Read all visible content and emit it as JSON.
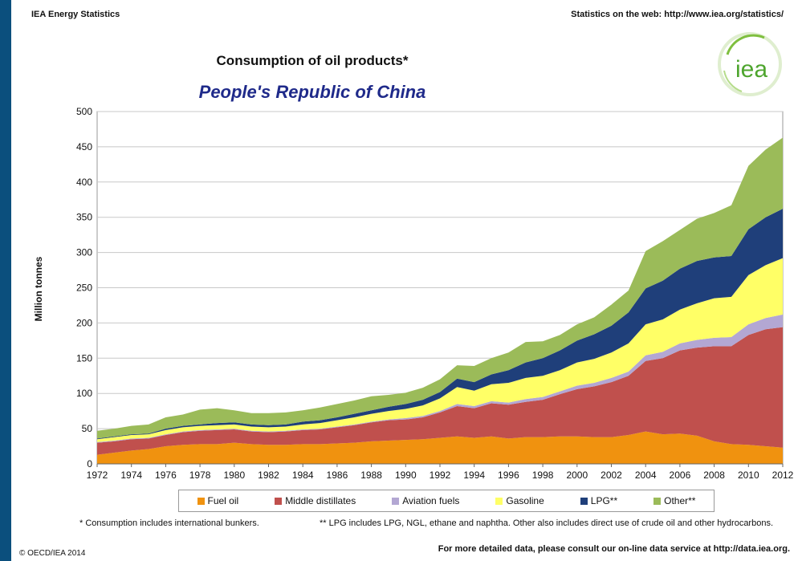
{
  "header": {
    "left": "IEA Energy Statistics",
    "right": "Statistics on the web: http://www.iea.org/statistics/"
  },
  "logo": {
    "text": "iea"
  },
  "colors": {
    "fuel_oil": "#f0920f",
    "middle_distillates": "#c0504d",
    "aviation_fuels": "#b3a7d3",
    "gasoline": "#ffff66",
    "lpg": "#1f3f7a",
    "other": "#9bbb59"
  },
  "chart_data": {
    "type": "area",
    "stacked": true,
    "title": "Consumption of oil products*",
    "subtitle": "People's Republic of China",
    "ylabel": "Million tonnes",
    "xlabel": "",
    "ylim": [
      0,
      500
    ],
    "yticks": [
      0,
      50,
      100,
      150,
      200,
      250,
      300,
      350,
      400,
      450,
      500
    ],
    "xlim": [
      1972,
      2012
    ],
    "xticks": [
      1972,
      1974,
      1976,
      1978,
      1980,
      1982,
      1984,
      1986,
      1988,
      1990,
      1992,
      1994,
      1996,
      1998,
      2000,
      2002,
      2004,
      2006,
      2008,
      2010,
      2012
    ],
    "grid": true,
    "legend_position": "bottom",
    "x": [
      1972,
      1973,
      1974,
      1975,
      1976,
      1977,
      1978,
      1979,
      1980,
      1981,
      1982,
      1983,
      1984,
      1985,
      1986,
      1987,
      1988,
      1989,
      1990,
      1991,
      1992,
      1993,
      1994,
      1995,
      1996,
      1997,
      1998,
      1999,
      2000,
      2001,
      2002,
      2003,
      2004,
      2005,
      2006,
      2007,
      2008,
      2009,
      2010,
      2011,
      2012
    ],
    "series": [
      {
        "name": "Fuel oil",
        "color_key": "fuel_oil",
        "values": [
          13,
          16,
          19,
          21,
          25,
          27,
          28,
          28,
          30,
          28,
          27,
          27,
          28,
          28,
          29,
          30,
          32,
          33,
          34,
          35,
          37,
          39,
          37,
          39,
          36,
          38,
          38,
          39,
          39,
          38,
          38,
          41,
          46,
          42,
          43,
          40,
          32,
          28,
          27,
          25,
          23
        ]
      },
      {
        "name": "Middle distillates",
        "color_key": "middle_distillates",
        "values": [
          17,
          16,
          16,
          15,
          16,
          18,
          19,
          20,
          19,
          18,
          18,
          19,
          20,
          21,
          23,
          25,
          27,
          29,
          29,
          31,
          36,
          43,
          42,
          47,
          48,
          50,
          53,
          60,
          67,
          72,
          78,
          84,
          100,
          108,
          118,
          125,
          135,
          139,
          156,
          166,
          171
        ]
      },
      {
        "name": "Aviation fuels",
        "color_key": "aviation_fuels",
        "values": [
          1,
          1,
          1,
          1,
          1,
          1,
          1,
          1,
          1,
          1,
          1,
          1,
          1,
          1,
          1,
          1,
          1,
          1,
          2,
          2,
          2,
          3,
          3,
          3,
          3,
          4,
          4,
          4,
          5,
          5,
          6,
          6,
          8,
          9,
          10,
          11,
          12,
          13,
          15,
          16,
          18
        ]
      },
      {
        "name": "Gasoline",
        "color_key": "gasoline",
        "values": [
          4,
          5,
          5,
          5,
          6,
          6,
          6,
          6,
          6,
          6,
          6,
          6,
          7,
          8,
          9,
          10,
          11,
          12,
          13,
          15,
          18,
          24,
          22,
          24,
          28,
          30,
          30,
          30,
          33,
          34,
          36,
          40,
          44,
          46,
          48,
          52,
          56,
          57,
          70,
          75,
          80
        ]
      },
      {
        "name": "LPG**",
        "color_key": "lpg",
        "values": [
          1,
          1,
          1,
          1,
          2,
          2,
          2,
          3,
          3,
          3,
          3,
          3,
          4,
          4,
          4,
          5,
          5,
          6,
          7,
          8,
          9,
          12,
          12,
          14,
          18,
          22,
          25,
          28,
          31,
          35,
          38,
          44,
          51,
          55,
          58,
          60,
          58,
          58,
          65,
          68,
          70
        ]
      },
      {
        "name": "Other**",
        "color_key": "other",
        "values": [
          11,
          11,
          12,
          13,
          16,
          16,
          21,
          21,
          17,
          16,
          17,
          17,
          16,
          18,
          19,
          19,
          20,
          17,
          16,
          17,
          18,
          19,
          23,
          23,
          25,
          29,
          24,
          22,
          23,
          24,
          30,
          31,
          53,
          56,
          55,
          60,
          63,
          72,
          90,
          96,
          101
        ]
      }
    ]
  },
  "notes": {
    "note1": "* Consumption includes international bunkers.",
    "note2": "** LPG includes LPG, NGL, ethane and naphtha. Other also includes direct use of crude oil and other hydrocarbons.",
    "more": "For more detailed data, please consult our on-line data service at http://data.iea.org.",
    "copyright": "© OECD/IEA 2014"
  }
}
